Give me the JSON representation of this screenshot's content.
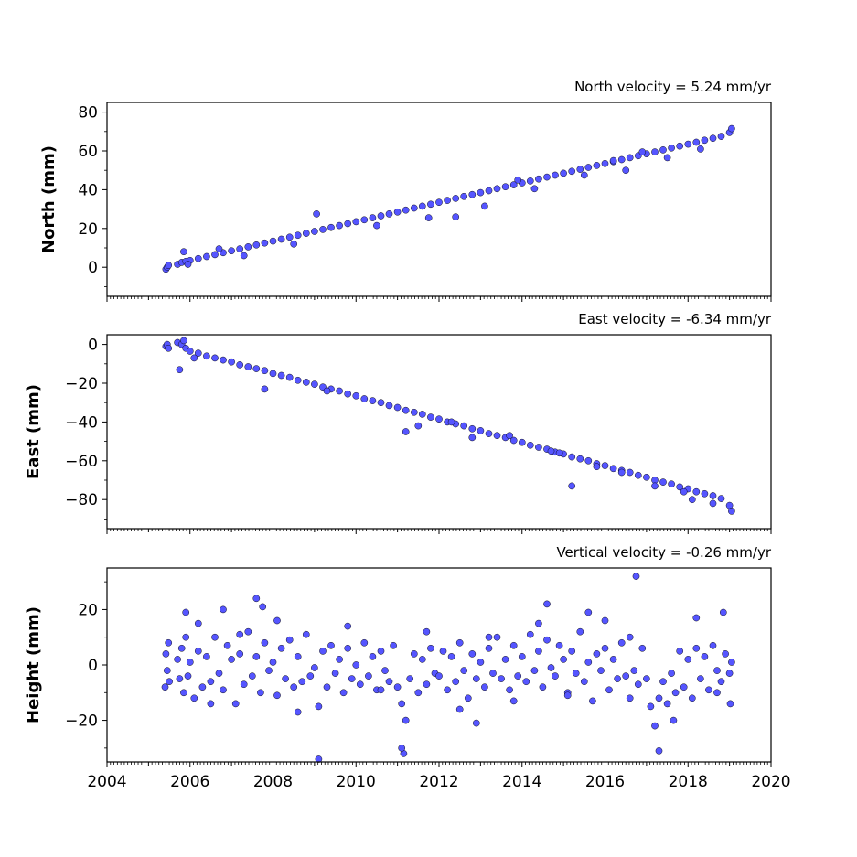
{
  "chart_data": [
    {
      "type": "scatter",
      "title": "North velocity = 5.24 mm/yr",
      "xlabel": "",
      "ylabel": "North (mm)",
      "xlim": [
        2004,
        2020
      ],
      "ylim": [
        -15,
        85
      ],
      "yticks": [
        0,
        20,
        40,
        60,
        80
      ],
      "ytick_labels": [
        "0",
        "20",
        "40",
        "60",
        "80"
      ],
      "show_xtick_labels": false,
      "grid": false,
      "marker_color": "#5555ff",
      "series": [
        {
          "x": [
            2005.42,
            2005.45,
            2005.48,
            2005.7,
            2005.8,
            2005.9,
            2006.0,
            2006.2,
            2006.4,
            2006.6,
            2006.8,
            2007.0,
            2007.2,
            2007.4,
            2007.6,
            2007.8,
            2008.0,
            2008.2,
            2008.4,
            2008.6,
            2008.8,
            2009.0,
            2009.2,
            2009.4,
            2009.6,
            2009.8,
            2010.0,
            2010.2,
            2010.4,
            2010.6,
            2010.8,
            2011.0,
            2011.2,
            2011.4,
            2011.6,
            2011.8,
            2012.0,
            2012.2,
            2012.4,
            2012.6,
            2012.8,
            2013.0,
            2013.2,
            2013.4,
            2013.6,
            2013.8,
            2014.0,
            2014.2,
            2014.4,
            2014.6,
            2014.8,
            2015.0,
            2015.2,
            2015.4,
            2015.6,
            2015.8,
            2016.0,
            2016.2,
            2016.4,
            2016.6,
            2016.8,
            2017.0,
            2017.2,
            2017.4,
            2017.6,
            2017.8,
            2018.0,
            2018.2,
            2018.4,
            2018.6,
            2018.8,
            2019.0,
            2019.05,
            2005.85,
            2006.7,
            2009.05,
            2011.75,
            2012.4,
            2013.1,
            2014.3,
            2015.5,
            2016.2,
            2016.9,
            2017.5,
            2018.3,
            2005.95,
            2007.3,
            2008.5,
            2010.5,
            2013.9,
            2016.5
          ],
          "y": [
            -1,
            0,
            1,
            1.5,
            2.5,
            3,
            3.5,
            4.5,
            5.5,
            6.5,
            7.5,
            8.5,
            9.5,
            10.5,
            11.5,
            12.5,
            13.5,
            14.5,
            15.5,
            16.5,
            17.5,
            18.5,
            19.5,
            20.5,
            21.5,
            22.5,
            23.5,
            24.5,
            25.5,
            26.5,
            27.5,
            28.5,
            29.5,
            30.5,
            31.5,
            32.5,
            33.5,
            34.5,
            35.5,
            36.5,
            37.5,
            38.5,
            39.5,
            40.5,
            41.5,
            42.5,
            43.5,
            44.5,
            45.5,
            46.5,
            47.5,
            48.5,
            49.5,
            50.5,
            51.5,
            52.5,
            53.5,
            54.5,
            55.5,
            56.5,
            57.5,
            58.5,
            59.5,
            60.5,
            61.5,
            62.5,
            63.5,
            64.5,
            65.5,
            66.5,
            67.5,
            69.5,
            71.5,
            8,
            9.5,
            27.5,
            25.5,
            26,
            31.5,
            40.5,
            47.5,
            55,
            59.5,
            56.5,
            61,
            1.5,
            6,
            12,
            21.5,
            45,
            50
          ]
        }
      ]
    },
    {
      "type": "scatter",
      "title": "East velocity = -6.34 mm/yr",
      "xlabel": "",
      "ylabel": "East (mm)",
      "xlim": [
        2004,
        2020
      ],
      "ylim": [
        -95,
        5
      ],
      "yticks": [
        0,
        -20,
        -40,
        -60,
        -80
      ],
      "ytick_labels": [
        "0",
        "−20",
        "−40",
        "−60",
        "−80"
      ],
      "show_xtick_labels": false,
      "grid": false,
      "marker_color": "#5555ff",
      "series": [
        {
          "x": [
            2005.42,
            2005.45,
            2005.48,
            2005.7,
            2005.8,
            2005.9,
            2006.0,
            2006.2,
            2006.4,
            2006.6,
            2006.8,
            2007.0,
            2007.2,
            2007.4,
            2007.6,
            2007.8,
            2008.0,
            2008.2,
            2008.4,
            2008.6,
            2008.8,
            2009.0,
            2009.2,
            2009.4,
            2009.6,
            2009.8,
            2010.0,
            2010.2,
            2010.4,
            2010.6,
            2010.8,
            2011.0,
            2011.2,
            2011.4,
            2011.6,
            2011.8,
            2012.0,
            2012.2,
            2012.4,
            2012.6,
            2012.8,
            2013.0,
            2013.2,
            2013.4,
            2013.6,
            2013.8,
            2014.0,
            2014.2,
            2014.4,
            2014.6,
            2014.8,
            2015.0,
            2015.2,
            2015.4,
            2015.6,
            2015.8,
            2016.0,
            2016.2,
            2016.4,
            2016.6,
            2016.8,
            2017.0,
            2017.2,
            2017.4,
            2017.6,
            2017.8,
            2018.0,
            2018.2,
            2018.4,
            2018.6,
            2018.8,
            2019.0,
            2019.05,
            2005.75,
            2005.85,
            2007.8,
            2011.2,
            2011.5,
            2012.8,
            2013.7,
            2014.7,
            2015.2,
            2015.8,
            2016.4,
            2017.2,
            2018.1,
            2018.6,
            2006.1,
            2009.3,
            2012.3,
            2014.9,
            2017.9
          ],
          "y": [
            -1,
            0,
            -2,
            1,
            0,
            -2,
            -3.5,
            -4.5,
            -6,
            -7,
            -8,
            -9,
            -10.5,
            -11.5,
            -12.5,
            -13.5,
            -15,
            -16,
            -17,
            -18.5,
            -19.5,
            -20.5,
            -22,
            -23,
            -24,
            -25.5,
            -26.5,
            -28,
            -29,
            -30,
            -31.5,
            -32.5,
            -34,
            -35,
            -36,
            -37.5,
            -38.5,
            -40,
            -41,
            -42,
            -43.5,
            -44.5,
            -46,
            -47,
            -48,
            -49.5,
            -50.5,
            -52,
            -53,
            -54,
            -55.5,
            -56.5,
            -58,
            -59,
            -60,
            -61.5,
            -62.5,
            -64,
            -65,
            -66,
            -67.5,
            -68.5,
            -70,
            -71,
            -72,
            -73.5,
            -74.5,
            -76,
            -77,
            -78,
            -79.5,
            -83,
            -86,
            -13,
            2,
            -23,
            -45,
            -42,
            -48,
            -47,
            -55,
            -73,
            -63,
            -66,
            -73,
            -80,
            -82,
            -7,
            -24,
            -40,
            -56,
            -76
          ]
        }
      ]
    },
    {
      "type": "scatter",
      "title": "Vertical velocity = -0.26 mm/yr",
      "xlabel": "",
      "ylabel": "Height (mm)",
      "xlim": [
        2004,
        2020
      ],
      "ylim": [
        -35,
        35
      ],
      "yticks": [
        -20,
        0,
        20
      ],
      "ytick_labels": [
        "−20",
        "0",
        "20"
      ],
      "xticks": [
        2004,
        2006,
        2008,
        2010,
        2012,
        2014,
        2016,
        2018,
        2020
      ],
      "xtick_labels": [
        "2004",
        "2006",
        "2008",
        "2010",
        "2012",
        "2014",
        "2016",
        "2018",
        "2020"
      ],
      "show_xtick_labels": true,
      "grid": false,
      "marker_color": "#5555ff",
      "series": [
        {
          "x": [
            2005.4,
            2005.42,
            2005.45,
            2005.48,
            2005.5,
            2005.7,
            2005.75,
            2005.8,
            2005.85,
            2005.9,
            2005.95,
            2006.0,
            2006.1,
            2006.2,
            2006.3,
            2006.4,
            2006.5,
            2006.6,
            2006.7,
            2006.8,
            2006.9,
            2007.0,
            2007.1,
            2007.2,
            2007.3,
            2007.4,
            2007.5,
            2007.6,
            2007.7,
            2007.8,
            2007.9,
            2008.0,
            2008.1,
            2008.2,
            2008.3,
            2008.4,
            2008.5,
            2008.6,
            2008.7,
            2008.8,
            2008.9,
            2009.0,
            2009.1,
            2009.2,
            2009.3,
            2009.4,
            2009.5,
            2009.6,
            2009.7,
            2009.8,
            2009.9,
            2010.0,
            2010.1,
            2010.2,
            2010.3,
            2010.4,
            2010.5,
            2010.6,
            2010.7,
            2010.8,
            2010.9,
            2011.0,
            2011.1,
            2011.2,
            2011.3,
            2011.4,
            2011.5,
            2011.6,
            2011.7,
            2011.8,
            2011.9,
            2012.0,
            2012.1,
            2012.2,
            2012.3,
            2012.4,
            2012.5,
            2012.6,
            2012.7,
            2012.8,
            2012.9,
            2013.0,
            2013.1,
            2013.2,
            2013.3,
            2013.4,
            2013.5,
            2013.6,
            2013.7,
            2013.8,
            2013.9,
            2014.0,
            2014.1,
            2014.2,
            2014.3,
            2014.4,
            2014.5,
            2014.6,
            2014.7,
            2014.8,
            2014.9,
            2015.0,
            2015.1,
            2015.2,
            2015.3,
            2015.4,
            2015.5,
            2015.6,
            2015.7,
            2015.8,
            2015.9,
            2016.0,
            2016.1,
            2016.2,
            2016.3,
            2016.4,
            2016.5,
            2016.6,
            2016.7,
            2016.8,
            2016.9,
            2017.0,
            2017.1,
            2017.2,
            2017.3,
            2017.4,
            2017.5,
            2017.6,
            2017.7,
            2017.8,
            2017.9,
            2018.0,
            2018.1,
            2018.2,
            2018.3,
            2018.4,
            2018.5,
            2018.6,
            2018.7,
            2018.8,
            2018.9,
            2019.0,
            2019.02,
            2019.05,
            2005.9,
            2006.2,
            2006.8,
            2007.6,
            2007.75,
            2008.1,
            2009.1,
            2011.15,
            2011.1,
            2012.9,
            2014.6,
            2015.6,
            2016.75,
            2017.3,
            2018.2,
            2018.85,
            2006.5,
            2007.2,
            2008.6,
            2009.8,
            2010.6,
            2011.7,
            2012.5,
            2013.2,
            2013.8,
            2014.4,
            2015.1,
            2016.0,
            2016.6,
            2017.65,
            2018.7
          ],
          "y": [
            -8,
            4,
            -2,
            8,
            -6,
            2,
            -5,
            6,
            -10,
            10,
            -4,
            1,
            -12,
            5,
            -8,
            3,
            -6,
            10,
            -3,
            -9,
            7,
            2,
            -14,
            4,
            -7,
            12,
            -4,
            3,
            -10,
            8,
            -2,
            1,
            -11,
            6,
            -5,
            9,
            -8,
            3,
            -6,
            11,
            -4,
            -1,
            -15,
            5,
            -8,
            7,
            -3,
            2,
            -10,
            6,
            -5,
            0,
            -7,
            8,
            -4,
            3,
            -9,
            5,
            -2,
            -6,
            7,
            -8,
            -14,
            -20,
            -5,
            4,
            -10,
            2,
            -7,
            6,
            -3,
            -4,
            5,
            -9,
            3,
            -6,
            8,
            -2,
            -12,
            4,
            -5,
            1,
            -8,
            6,
            -3,
            10,
            -5,
            2,
            -9,
            7,
            -4,
            3,
            -6,
            11,
            -2,
            5,
            -8,
            9,
            -1,
            -4,
            7,
            2,
            -10,
            5,
            -3,
            12,
            -6,
            1,
            -13,
            4,
            -2,
            6,
            -9,
            2,
            -5,
            8,
            -4,
            10,
            -2,
            -7,
            6,
            -5,
            -15,
            -22,
            -12,
            -6,
            -14,
            -3,
            -10,
            5,
            -8,
            2,
            -12,
            6,
            -5,
            3,
            -9,
            7,
            -2,
            -6,
            4,
            -3,
            -14,
            1,
            19,
            15,
            20,
            24,
            21,
            16,
            -34,
            -32,
            -30,
            -21,
            22,
            19,
            32,
            -31,
            17,
            19,
            -14,
            11,
            -17,
            14,
            -9,
            12,
            -16,
            10,
            -13,
            15,
            -11,
            16,
            -12,
            -20,
            -10
          ]
        }
      ]
    }
  ]
}
